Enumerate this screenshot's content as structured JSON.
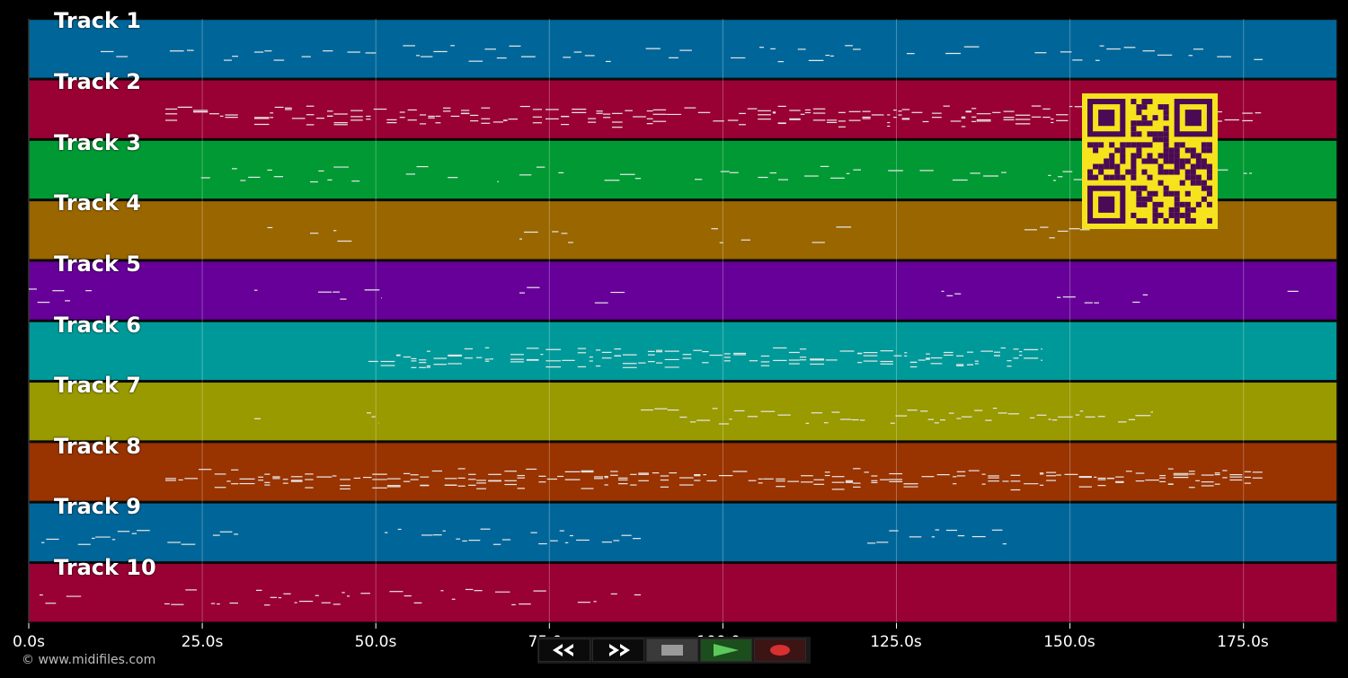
{
  "tracks": [
    {
      "label": "Track 1",
      "color": "#006699"
    },
    {
      "label": "Track 2",
      "color": "#990033"
    },
    {
      "label": "Track 3",
      "color": "#009933"
    },
    {
      "label": "Track 4",
      "color": "#996600"
    },
    {
      "label": "Track 5",
      "color": "#660099"
    },
    {
      "label": "Track 6",
      "color": "#009999"
    },
    {
      "label": "Track 7",
      "color": "#999900"
    },
    {
      "label": "Track 8",
      "color": "#993300"
    },
    {
      "label": "Track 9",
      "color": "#006699"
    },
    {
      "label": "Track 10",
      "color": "#990033"
    }
  ],
  "timeline": {
    "range_seconds": [
      0,
      188.5
    ],
    "ticks": [
      {
        "value": 0,
        "label": "0.0s"
      },
      {
        "value": 25,
        "label": "25.0s"
      },
      {
        "value": 50,
        "label": "50.0s"
      },
      {
        "value": 75,
        "label": "75.0s"
      },
      {
        "value": 100,
        "label": "100.0s"
      },
      {
        "value": 125,
        "label": "125.0s"
      },
      {
        "value": 150,
        "label": "150.0s"
      },
      {
        "value": 175,
        "label": "175.0s"
      }
    ]
  },
  "copyright": "© www.midifiles.com",
  "transport": {
    "buttons": [
      {
        "name": "rewind",
        "icon": "rewind-icon"
      },
      {
        "name": "fast-forward",
        "icon": "fast-forward-icon"
      },
      {
        "name": "stop",
        "icon": "stop-icon"
      },
      {
        "name": "play",
        "icon": "play-icon"
      },
      {
        "name": "record",
        "icon": "record-icon"
      }
    ]
  },
  "qr_code": {
    "icon": "qr-code-icon",
    "fg": "#4b0a55",
    "bg": "#f5e41d"
  }
}
